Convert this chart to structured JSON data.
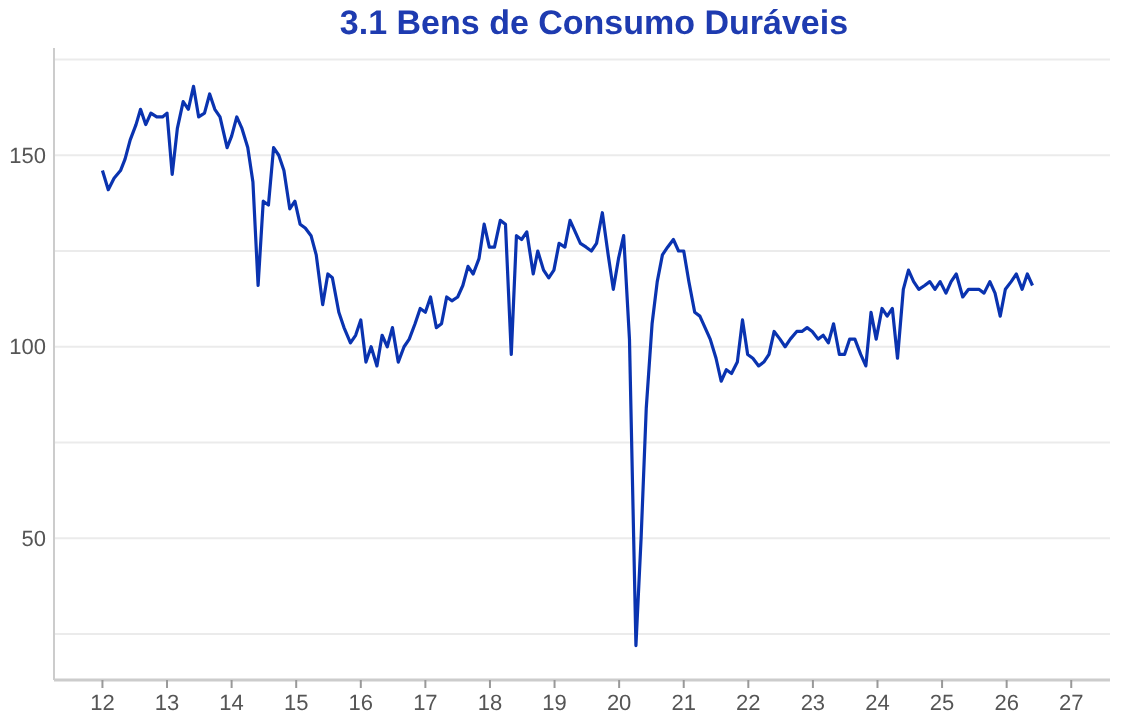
{
  "chart_data": {
    "type": "line",
    "title": "3.1 Bens de Consumo Duráveis",
    "xlim": [
      11.25,
      27.6
    ],
    "xticks": [
      12,
      13,
      14,
      15,
      16,
      17,
      18,
      19,
      20,
      21,
      22,
      23,
      24,
      25,
      26,
      27
    ],
    "ylim": [
      13,
      178
    ],
    "yticks": [
      {
        "value": 25,
        "label": null
      },
      50,
      {
        "value": 75,
        "label": null
      },
      100,
      {
        "value": 125,
        "label": null
      },
      150,
      {
        "value": 175,
        "label": null
      }
    ],
    "grid": "y",
    "line_style": "solid",
    "series": [
      {
        "color": "#0a33b0",
        "x": [
          12.0,
          12.09,
          12.18,
          12.28,
          12.35,
          12.43,
          12.52,
          12.59,
          12.67,
          12.75,
          12.84,
          12.93,
          13.0,
          13.08,
          13.16,
          13.25,
          13.33,
          13.41,
          13.49,
          13.58,
          13.66,
          13.74,
          13.82,
          13.93,
          14.0,
          14.08,
          14.16,
          14.25,
          14.33,
          14.41,
          14.49,
          14.57,
          14.65,
          14.73,
          14.81,
          14.9,
          14.98,
          15.06,
          15.14,
          15.23,
          15.31,
          15.41,
          15.49,
          15.56,
          15.66,
          15.74,
          15.84,
          15.92,
          16.0,
          16.08,
          16.16,
          16.25,
          16.33,
          16.41,
          16.49,
          16.58,
          16.67,
          16.75,
          16.84,
          16.92,
          17.0,
          17.08,
          17.17,
          17.25,
          17.33,
          17.41,
          17.5,
          17.58,
          17.66,
          17.74,
          17.83,
          17.91,
          17.99,
          18.07,
          18.16,
          18.24,
          18.33,
          18.41,
          18.49,
          18.57,
          18.67,
          18.74,
          18.83,
          18.91,
          18.99,
          19.07,
          19.16,
          19.24,
          19.32,
          19.4,
          19.49,
          19.57,
          19.65,
          19.74,
          19.83,
          19.91,
          19.99,
          20.07,
          20.16,
          20.26,
          20.34,
          20.42,
          20.51,
          20.59,
          20.67,
          20.75,
          20.84,
          20.92,
          21.0,
          21.08,
          21.17,
          21.25,
          21.33,
          21.41,
          21.5,
          21.58,
          21.66,
          21.74,
          21.83,
          21.91,
          21.99,
          22.07,
          22.16,
          22.24,
          22.32,
          22.4,
          22.49,
          22.57,
          22.65,
          22.75,
          22.83,
          22.91,
          22.99,
          23.08,
          23.16,
          23.24,
          23.32,
          23.41,
          23.49,
          23.57,
          23.65,
          23.74,
          23.82,
          23.9,
          23.98,
          24.07,
          24.15,
          24.23,
          24.31,
          24.4,
          24.48,
          24.56,
          24.64,
          24.73,
          24.81,
          24.89,
          24.97,
          25.06,
          25.14,
          25.22,
          25.32,
          25.41,
          25.49,
          25.57,
          25.65,
          25.74,
          25.82,
          25.9,
          25.98,
          26.07,
          26.15,
          26.24,
          26.32,
          26.4
        ],
        "values": [
          146,
          141,
          144,
          146,
          149,
          154,
          158,
          162,
          158,
          161,
          160,
          160,
          161,
          145,
          157,
          164,
          162,
          168,
          160,
          161,
          166,
          162,
          160,
          152,
          155,
          160,
          157,
          152,
          143,
          116,
          138,
          137,
          152,
          150,
          146,
          136,
          138,
          132,
          131,
          129,
          124,
          111,
          119,
          118,
          109,
          105,
          101,
          103,
          107,
          96,
          100,
          95,
          103,
          100,
          105,
          96,
          100,
          102,
          106,
          110,
          109,
          113,
          105,
          106,
          113,
          112,
          113,
          116,
          121,
          119,
          123,
          132,
          126,
          126,
          133,
          132,
          98,
          129,
          128,
          130,
          119,
          125,
          120,
          118,
          120,
          127,
          126,
          133,
          130,
          127,
          126,
          125,
          127,
          135,
          124,
          115,
          123,
          129,
          102,
          22,
          50,
          84,
          106,
          117,
          124,
          126,
          128,
          125,
          125,
          117,
          109,
          108,
          105,
          102,
          97,
          91,
          94,
          93,
          96,
          107,
          98,
          97,
          95,
          96,
          98,
          104,
          102,
          100,
          102,
          104,
          104,
          105,
          104,
          102,
          103,
          101,
          106,
          98,
          98,
          102,
          102,
          98,
          95,
          109,
          102,
          110,
          108,
          110,
          97,
          115,
          120,
          117,
          115,
          116,
          117,
          115,
          117,
          114,
          117,
          119,
          113,
          115,
          115,
          115,
          114,
          117,
          114,
          108,
          115,
          117,
          119,
          115,
          119,
          116
        ]
      }
    ]
  }
}
